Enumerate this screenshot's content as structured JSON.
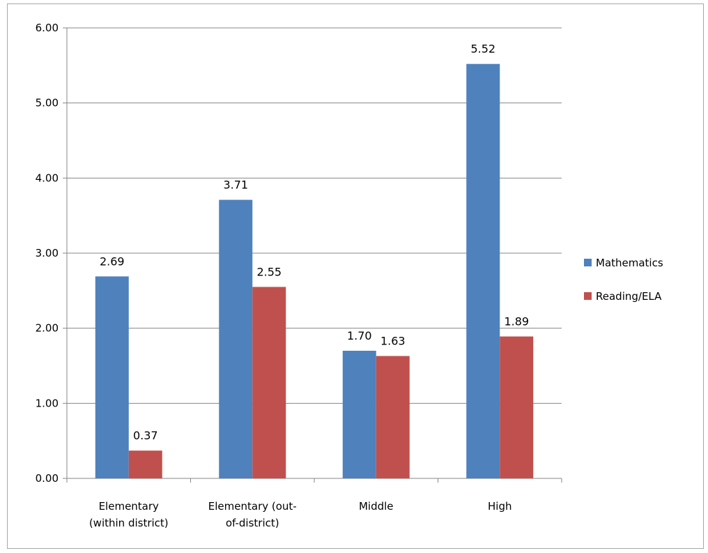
{
  "chart_data": {
    "type": "bar",
    "categories": [
      [
        "Elementary",
        "(within district)"
      ],
      [
        "Elementary (out-",
        "of-district)"
      ],
      [
        "Middle"
      ],
      [
        "High"
      ]
    ],
    "series": [
      {
        "name": "Mathematics",
        "color": "#4f81bd",
        "values": [
          2.69,
          3.71,
          1.7,
          5.52
        ],
        "labels": [
          "2.69",
          "3.71",
          "1.70",
          "5.52"
        ]
      },
      {
        "name": "Reading/ELA",
        "color": "#c0504d",
        "values": [
          0.37,
          2.55,
          1.63,
          1.89
        ],
        "labels": [
          "0.37",
          "2.55",
          "1.63",
          "1.89"
        ]
      }
    ],
    "ylim": [
      0,
      6
    ],
    "yticks": [
      "0.00",
      "1.00",
      "2.00",
      "3.00",
      "4.00",
      "5.00",
      "6.00"
    ],
    "grid": true,
    "legend_position": "right",
    "title": "",
    "xlabel": "",
    "ylabel": ""
  }
}
